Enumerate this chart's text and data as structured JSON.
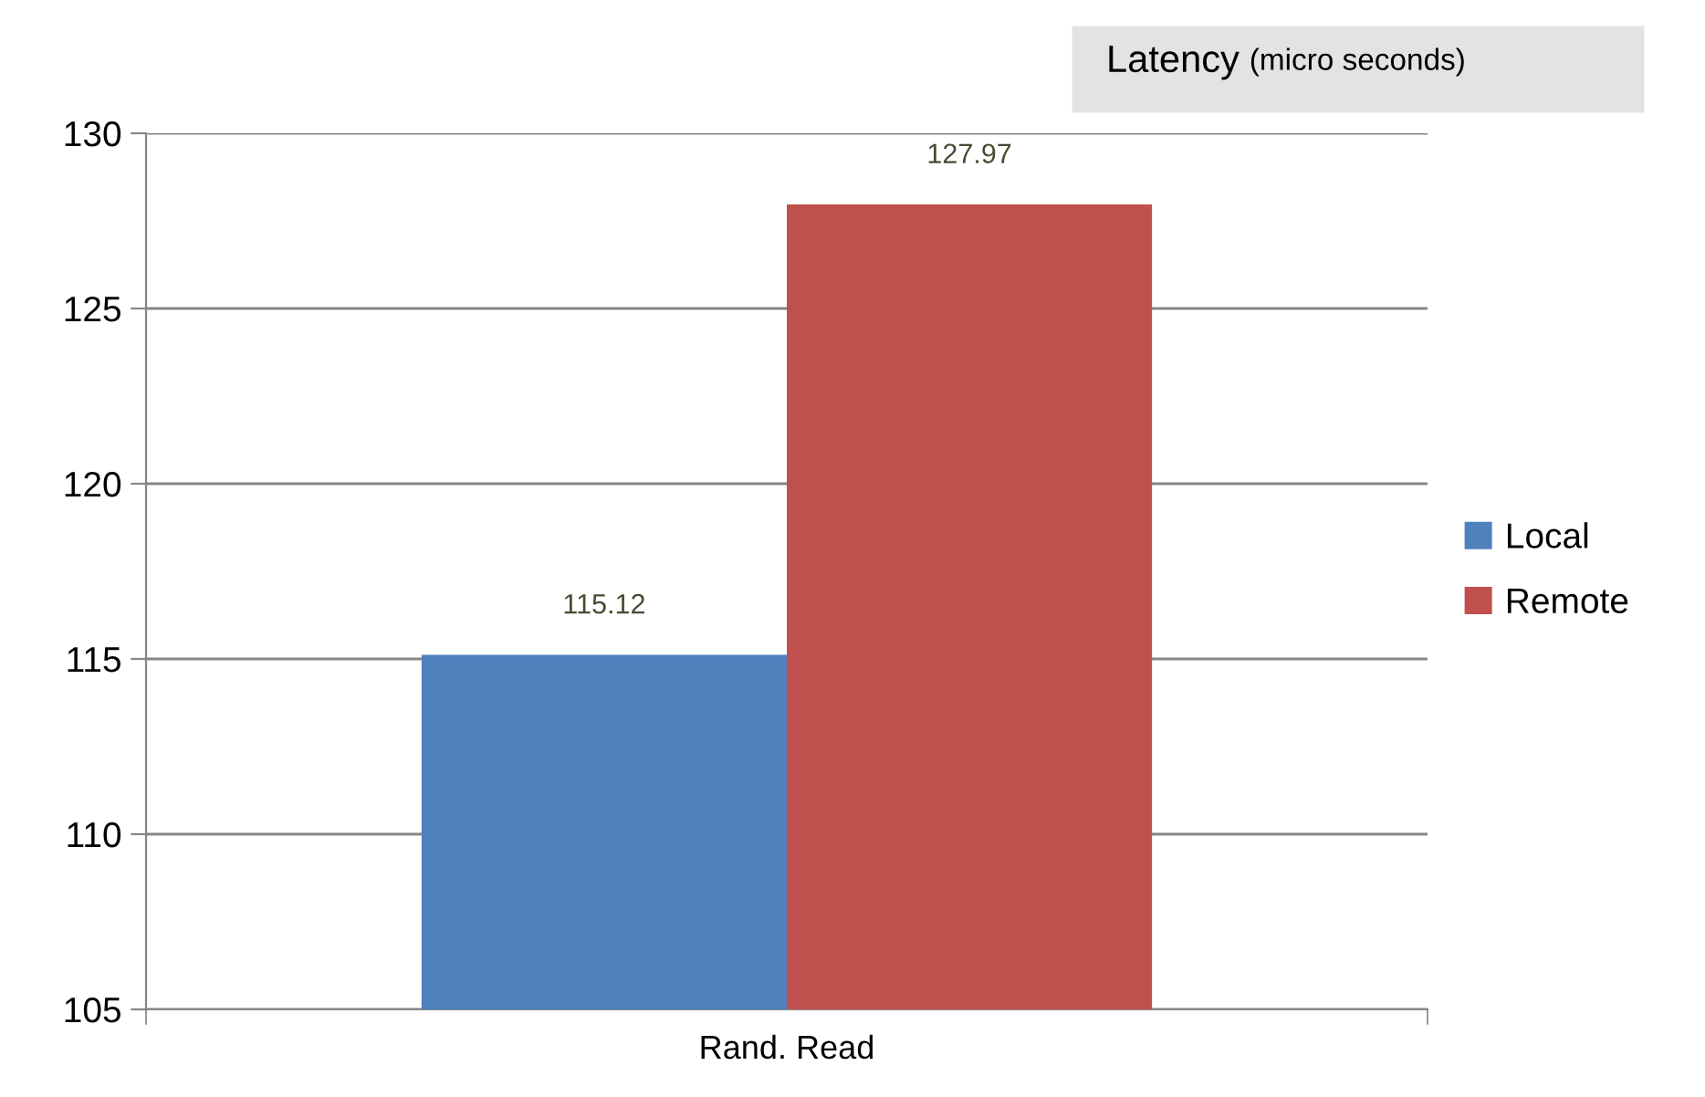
{
  "chart_data": {
    "type": "bar",
    "title": "Latency",
    "subtitle": "(micro seconds)",
    "categories": [
      "Rand. Read"
    ],
    "series": [
      {
        "name": "Local",
        "color": "#4f81bd",
        "values": [
          115.12
        ]
      },
      {
        "name": "Remote",
        "color": "#c0504d",
        "values": [
          127.97
        ]
      }
    ],
    "ylim": [
      105,
      130
    ],
    "yticks": [
      105,
      110,
      115,
      120,
      125,
      130
    ],
    "grid": "y",
    "legend": "right",
    "data_labels": true
  }
}
